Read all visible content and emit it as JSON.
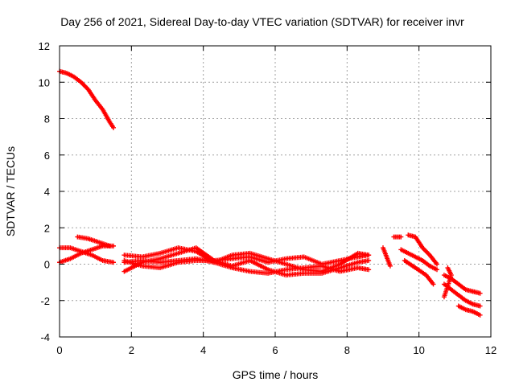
{
  "chart_data": {
    "type": "scatter",
    "title": "Day 256 of 2021, Sidereal Day-to-day VTEC variation (SDTVAR) for receiver invr",
    "xlabel": "GPS time / hours",
    "ylabel": "SDTVAR / TECUs",
    "xlim": [
      0,
      12
    ],
    "ylim": [
      -4,
      12
    ],
    "xticks": [
      0,
      2,
      4,
      6,
      8,
      10,
      12
    ],
    "yticks": [
      -4,
      -2,
      0,
      2,
      4,
      6,
      8,
      10,
      12
    ],
    "grid": true,
    "marker": "plus",
    "color": "#ff0000",
    "series": [
      {
        "name": "s1",
        "points": [
          [
            0.0,
            10.6
          ],
          [
            0.2,
            10.5
          ],
          [
            0.4,
            10.3
          ],
          [
            0.6,
            10.0
          ],
          [
            0.8,
            9.6
          ],
          [
            1.0,
            9.0
          ],
          [
            1.2,
            8.5
          ],
          [
            1.4,
            7.8
          ],
          [
            1.5,
            7.5
          ]
        ]
      },
      {
        "name": "s2",
        "points": [
          [
            0.0,
            0.9
          ],
          [
            0.3,
            0.9
          ],
          [
            0.6,
            0.7
          ],
          [
            0.9,
            0.5
          ],
          [
            1.2,
            0.2
          ],
          [
            1.5,
            0.1
          ]
        ]
      },
      {
        "name": "s3",
        "points": [
          [
            0.0,
            0.1
          ],
          [
            0.3,
            0.3
          ],
          [
            0.6,
            0.6
          ],
          [
            0.9,
            0.8
          ],
          [
            1.2,
            1.0
          ],
          [
            1.5,
            1.0
          ]
        ]
      },
      {
        "name": "s4",
        "points": [
          [
            0.5,
            1.5
          ],
          [
            0.8,
            1.4
          ],
          [
            1.1,
            1.2
          ],
          [
            1.4,
            1.0
          ]
        ]
      },
      {
        "name": "s5",
        "points": [
          [
            1.8,
            -0.4
          ],
          [
            2.3,
            0.1
          ],
          [
            2.8,
            0.3
          ],
          [
            3.3,
            0.6
          ],
          [
            3.8,
            0.9
          ],
          [
            4.3,
            0.2
          ],
          [
            4.8,
            0.3
          ],
          [
            5.3,
            0.4
          ],
          [
            5.8,
            0.1
          ],
          [
            6.3,
            0.3
          ],
          [
            6.8,
            0.4
          ],
          [
            7.3,
            0.0
          ],
          [
            7.8,
            0.2
          ],
          [
            8.3,
            0.4
          ],
          [
            8.6,
            0.5
          ]
        ]
      },
      {
        "name": "s6",
        "points": [
          [
            1.8,
            0.5
          ],
          [
            2.3,
            0.4
          ],
          [
            2.8,
            0.6
          ],
          [
            3.3,
            0.9
          ],
          [
            3.8,
            0.7
          ],
          [
            4.3,
            0.1
          ],
          [
            4.8,
            0.5
          ],
          [
            5.3,
            0.6
          ],
          [
            5.8,
            0.3
          ],
          [
            6.3,
            0.0
          ],
          [
            6.8,
            -0.3
          ],
          [
            7.3,
            -0.4
          ],
          [
            7.8,
            0.0
          ],
          [
            8.3,
            0.6
          ],
          [
            8.6,
            0.5
          ]
        ]
      },
      {
        "name": "s7",
        "points": [
          [
            1.8,
            0.1
          ],
          [
            2.3,
            0.2
          ],
          [
            2.8,
            0.1
          ],
          [
            3.3,
            0.2
          ],
          [
            3.8,
            0.3
          ],
          [
            4.3,
            0.1
          ],
          [
            4.8,
            -0.2
          ],
          [
            5.3,
            -0.4
          ],
          [
            5.8,
            -0.5
          ],
          [
            6.3,
            -0.3
          ],
          [
            6.8,
            -0.2
          ],
          [
            7.3,
            -0.1
          ],
          [
            7.8,
            -0.4
          ],
          [
            8.3,
            -0.2
          ],
          [
            8.6,
            -0.3
          ]
        ]
      },
      {
        "name": "s8",
        "points": [
          [
            1.8,
            0.2
          ],
          [
            2.3,
            -0.1
          ],
          [
            2.8,
            -0.2
          ],
          [
            3.3,
            0.1
          ],
          [
            3.8,
            0.2
          ],
          [
            4.3,
            0.2
          ],
          [
            4.8,
            -0.1
          ],
          [
            5.3,
            0.2
          ],
          [
            5.8,
            -0.3
          ],
          [
            6.3,
            -0.6
          ],
          [
            6.8,
            -0.5
          ],
          [
            7.3,
            -0.5
          ],
          [
            7.8,
            -0.2
          ],
          [
            8.3,
            0.1
          ],
          [
            8.6,
            0.2
          ]
        ]
      },
      {
        "name": "s9",
        "points": [
          [
            9.0,
            0.9
          ],
          [
            9.1,
            0.4
          ],
          [
            9.2,
            -0.1
          ]
        ]
      },
      {
        "name": "s10",
        "points": [
          [
            9.3,
            1.5
          ],
          [
            9.5,
            1.5
          ]
        ]
      },
      {
        "name": "s11",
        "points": [
          [
            9.7,
            1.6
          ],
          [
            9.9,
            1.5
          ],
          [
            10.1,
            0.9
          ],
          [
            10.3,
            0.5
          ],
          [
            10.5,
            0.0
          ]
        ]
      },
      {
        "name": "s12",
        "points": [
          [
            9.5,
            0.8
          ],
          [
            9.7,
            0.6
          ],
          [
            9.9,
            0.4
          ],
          [
            10.1,
            0.2
          ],
          [
            10.3,
            -0.1
          ],
          [
            10.5,
            -0.3
          ]
        ]
      },
      {
        "name": "s13",
        "points": [
          [
            9.6,
            0.2
          ],
          [
            9.9,
            -0.2
          ],
          [
            10.2,
            -0.6
          ],
          [
            10.4,
            -1.1
          ]
        ]
      },
      {
        "name": "s14",
        "points": [
          [
            10.7,
            -0.6
          ],
          [
            10.9,
            -0.8
          ],
          [
            11.1,
            -1.1
          ],
          [
            11.3,
            -1.4
          ],
          [
            11.5,
            -1.5
          ],
          [
            11.7,
            -1.6
          ]
        ]
      },
      {
        "name": "s15",
        "points": [
          [
            10.7,
            -1.1
          ],
          [
            10.9,
            -1.4
          ],
          [
            11.1,
            -1.7
          ],
          [
            11.3,
            -2.0
          ],
          [
            11.5,
            -2.2
          ],
          [
            11.7,
            -2.3
          ]
        ]
      },
      {
        "name": "s16",
        "points": [
          [
            11.1,
            -2.3
          ],
          [
            11.3,
            -2.5
          ],
          [
            11.5,
            -2.6
          ],
          [
            11.7,
            -2.8
          ]
        ]
      },
      {
        "name": "s17",
        "points": [
          [
            10.8,
            -0.2
          ],
          [
            10.9,
            -0.6
          ],
          [
            10.7,
            -1.8
          ]
        ]
      }
    ]
  }
}
